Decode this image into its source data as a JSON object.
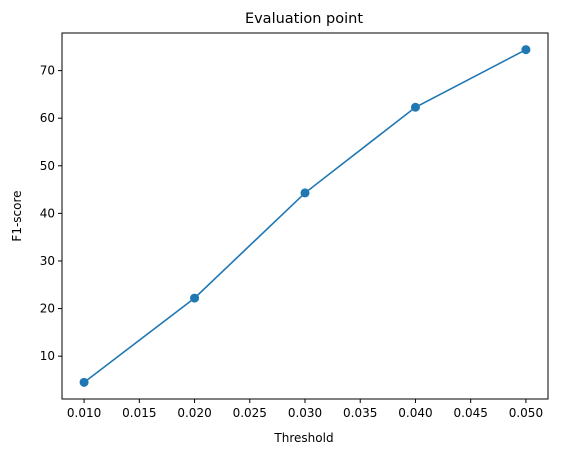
{
  "chart_data": {
    "type": "line",
    "title": "Evaluation point",
    "xlabel": "Threshold",
    "ylabel": "F1-score",
    "xlim": [
      0.008,
      0.052
    ],
    "ylim": [
      1.0,
      77.9
    ],
    "x_ticks": [
      0.01,
      0.015,
      0.02,
      0.025,
      0.03,
      0.035,
      0.04,
      0.045,
      0.05
    ],
    "x_tick_labels": [
      "0.010",
      "0.015",
      "0.020",
      "0.025",
      "0.030",
      "0.035",
      "0.040",
      "0.045",
      "0.050"
    ],
    "y_ticks": [
      10,
      20,
      30,
      40,
      50,
      60,
      70
    ],
    "y_tick_labels": [
      "10",
      "20",
      "30",
      "40",
      "50",
      "60",
      "70"
    ],
    "grid": false,
    "series": [
      {
        "color": "#1f77b4",
        "marker": "circle",
        "x": [
          0.01,
          0.02,
          0.03,
          0.04,
          0.05
        ],
        "y": [
          4.5,
          22.2,
          44.3,
          62.3,
          74.4
        ]
      }
    ]
  }
}
